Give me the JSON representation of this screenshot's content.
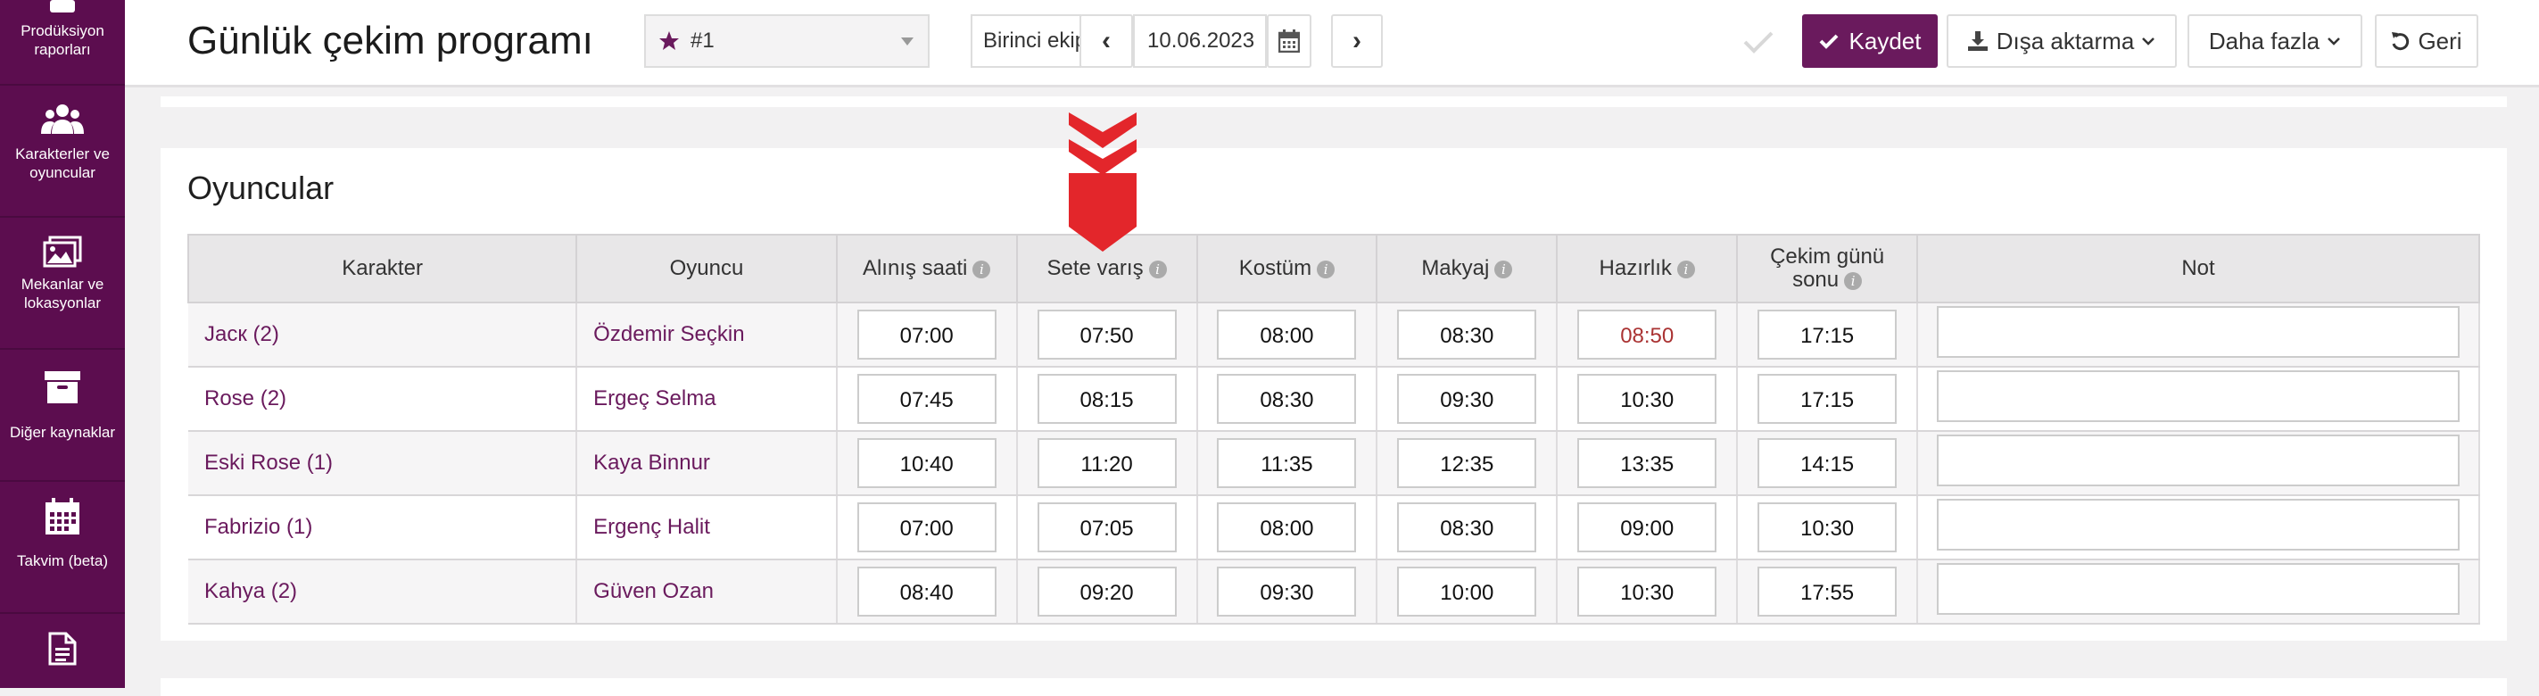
{
  "sidebar": {
    "items": [
      {
        "label": "Prodüksiyon raporları",
        "icon": "report-icon"
      },
      {
        "label": "Karakterler ve oyuncular",
        "icon": "users-icon"
      },
      {
        "label": "Mekanlar ve lokasyonlar",
        "icon": "image-icon"
      },
      {
        "label": "Diğer kaynaklar",
        "icon": "archive-box-icon"
      },
      {
        "label": "Takvim (beta)",
        "icon": "calendar-icon"
      },
      {
        "label": "",
        "icon": "document-icon"
      }
    ]
  },
  "header": {
    "title": "Günlük çekim programı",
    "schedule_select": "#1",
    "team_select": "Birinci ekip",
    "date": "10.06.2023",
    "prev_symbol": "‹",
    "next_symbol": "›",
    "save_label": "Kaydet",
    "export_label": "Dışa aktarma",
    "more_label": "Daha fazla",
    "back_label": "Geri"
  },
  "actors": {
    "section_title": "Oyuncular",
    "columns": [
      "Karakter",
      "Oyuncu",
      "Alınış saati",
      "Sete varış",
      "Kostüm",
      "Makyaj",
      "Hazırlık",
      "Çekim günü sonu",
      "Not"
    ],
    "rows": [
      {
        "character": "Jacк (2)",
        "actor": "Özdemir Seçkin",
        "times": [
          "07:00",
          "07:50",
          "08:00",
          "08:30",
          "08:50",
          "17:15"
        ]
      },
      {
        "character": "Rose (2)",
        "actor": "Ergeç Selma",
        "times": [
          "07:45",
          "08:15",
          "08:30",
          "09:30",
          "10:30",
          "17:15"
        ]
      },
      {
        "character": "Eski Rose (1)",
        "actor": "Kaya Binnur",
        "times": [
          "10:40",
          "11:20",
          "11:35",
          "12:35",
          "13:35",
          "14:15"
        ]
      },
      {
        "character": "Fabrizio (1)",
        "actor": "Ergenç Halit",
        "times": [
          "07:00",
          "07:05",
          "08:00",
          "08:30",
          "09:00",
          "10:30"
        ]
      },
      {
        "character": "Kahya (2)",
        "actor": "Güven Ozan",
        "times": [
          "08:40",
          "09:20",
          "09:30",
          "10:00",
          "10:30",
          "17:55"
        ]
      }
    ]
  },
  "colors": {
    "accent": "#6a1a5d",
    "sidebar": "#5c0d4f",
    "arrow": "#e3262b",
    "warning_time": "#a33333"
  }
}
